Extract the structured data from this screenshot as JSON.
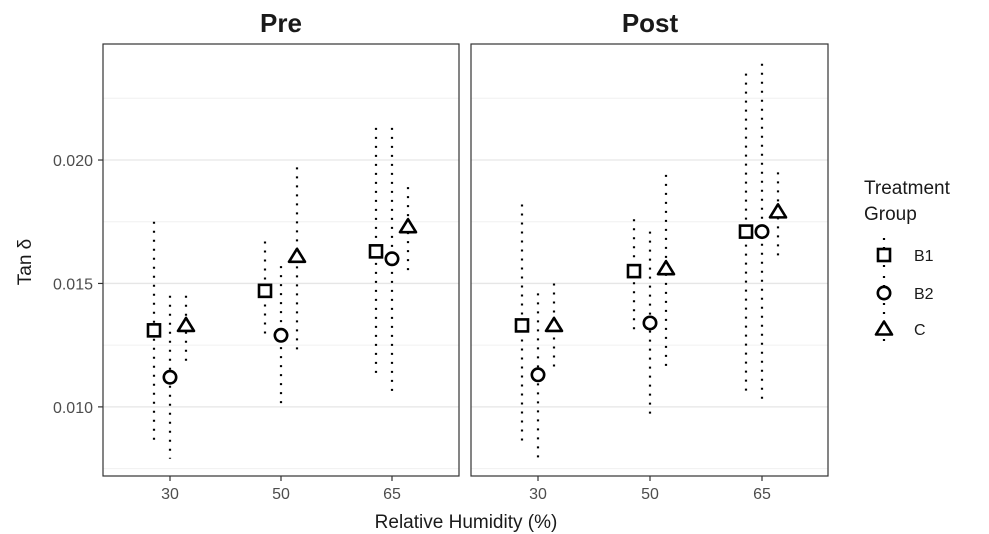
{
  "chart_data": {
    "type": "scatter",
    "subtype": "pointrange-dodged",
    "facets": [
      "Pre",
      "Post"
    ],
    "categories": [
      "30",
      "50",
      "65"
    ],
    "xlabel": "Relative Humidity (%)",
    "ylabel": "Tan δ",
    "ylim": [
      0.0072,
      0.0247
    ],
    "yticks": [
      0.01,
      0.015,
      0.02
    ],
    "ytick_labels": [
      "0.010",
      "0.015",
      "0.020"
    ],
    "grid": true,
    "legend": {
      "title_line1": "Treatment",
      "title_line2": "Group",
      "position": "right"
    },
    "series": [
      {
        "name": "B1",
        "shape": "square",
        "Pre": {
          "mean": [
            0.0131,
            0.0147,
            0.0163
          ],
          "lower": [
            0.0085,
            0.0127,
            0.0111
          ],
          "upper": [
            0.0175,
            0.0167,
            0.0213
          ]
        },
        "Post": {
          "mean": [
            0.0133,
            0.0155,
            0.0171
          ],
          "lower": [
            0.0085,
            0.0131,
            0.0106
          ],
          "upper": [
            0.0182,
            0.0176,
            0.0235
          ]
        }
      },
      {
        "name": "B2",
        "shape": "circle",
        "Pre": {
          "mean": [
            0.0112,
            0.0129,
            0.016
          ],
          "lower": [
            0.0079,
            0.0099,
            0.0104
          ],
          "upper": [
            0.0145,
            0.0157,
            0.0213
          ]
        },
        "Post": {
          "mean": [
            0.0113,
            0.0134,
            0.0171
          ],
          "lower": [
            0.0079,
            0.0097,
            0.0102
          ],
          "upper": [
            0.0146,
            0.0171,
            0.0239
          ]
        }
      },
      {
        "name": "C",
        "shape": "triangle",
        "Pre": {
          "mean": [
            0.0133,
            0.0161,
            0.0173
          ],
          "lower": [
            0.0117,
            0.0123,
            0.0153
          ],
          "upper": [
            0.0145,
            0.0197,
            0.0189
          ]
        },
        "Post": {
          "mean": [
            0.0133,
            0.0156,
            0.0179
          ],
          "lower": [
            0.0115,
            0.0116,
            0.0159
          ],
          "upper": [
            0.015,
            0.0194,
            0.0195
          ]
        }
      }
    ]
  }
}
